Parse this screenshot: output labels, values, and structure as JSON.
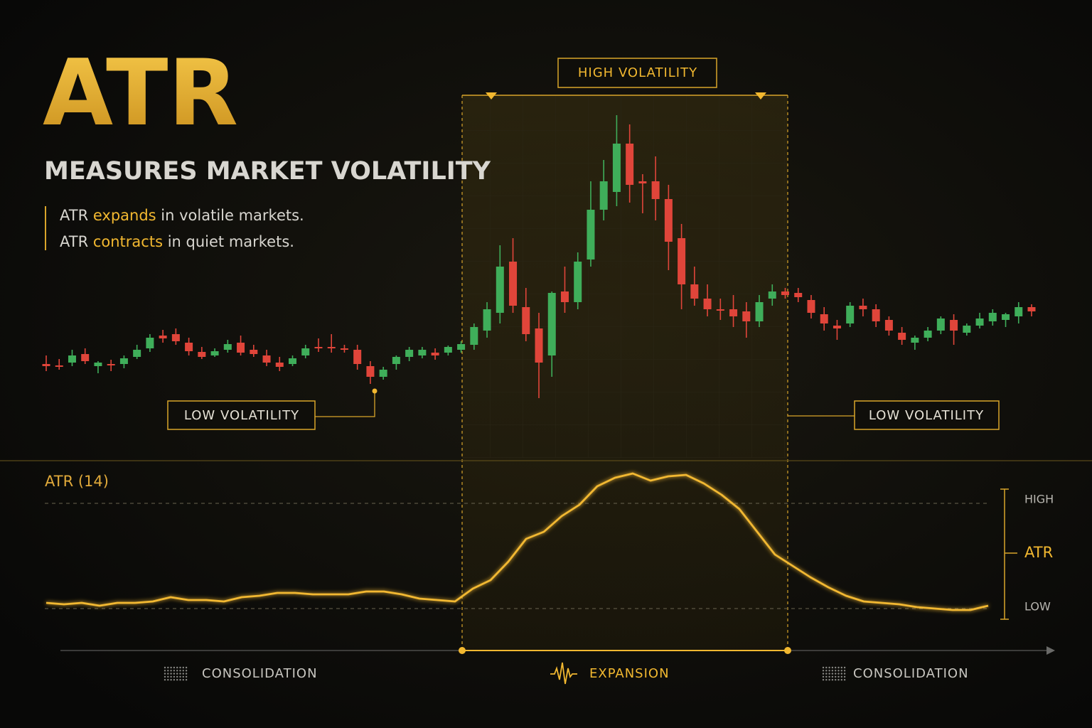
{
  "header": {
    "title": "ATR",
    "subtitle": "MEASURES MARKET VOLATILITY",
    "notes": [
      [
        "ATR ",
        "expands",
        " in volatile markets."
      ],
      [
        "ATR ",
        "contracts",
        " in quiet markets."
      ]
    ]
  },
  "annotations": {
    "high": "HIGH VOLATILITY",
    "low_left": "LOW VOLATILITY",
    "low_right": "LOW VOLATILITY"
  },
  "phases": [
    "CONSOLIDATION",
    "EXPANSION",
    "CONSOLIDATION"
  ],
  "chart_data": [
    {
      "type": "candlestick",
      "up_color": "#3fae5a",
      "down_color": "#e0453a",
      "ylim": [
        0,
        450
      ],
      "open": [
        88,
        86,
        90,
        102,
        85,
        88,
        88,
        98,
        110,
        128,
        130,
        118,
        105,
        100,
        108,
        118,
        108,
        100,
        90,
        88,
        100,
        112,
        112,
        110,
        108,
        85,
        70,
        88,
        98,
        100,
        104,
        104,
        108,
        115,
        135,
        160,
        232,
        168,
        138,
        100,
        190,
        175,
        235,
        305,
        330,
        398,
        345,
        345,
        320,
        265,
        200,
        180,
        165,
        165,
        162,
        148,
        180,
        190,
        188,
        178,
        158,
        142,
        145,
        170,
        165,
        150,
        132,
        118,
        125,
        135,
        150,
        132,
        142,
        148,
        150,
        155,
        168
      ],
      "high": [
        100,
        95,
        108,
        110,
        92,
        94,
        100,
        115,
        130,
        136,
        138,
        125,
        112,
        110,
        122,
        128,
        115,
        108,
        98,
        100,
        115,
        124,
        130,
        115,
        115,
        92,
        84,
        100,
        112,
        112,
        110,
        114,
        120,
        145,
        175,
        255,
        265,
        195,
        160,
        190,
        225,
        245,
        345,
        375,
        438,
        425,
        355,
        380,
        340,
        285,
        225,
        200,
        180,
        185,
        175,
        185,
        200,
        195,
        195,
        185,
        168,
        150,
        175,
        180,
        172,
        155,
        140,
        128,
        140,
        155,
        158,
        145,
        160,
        165,
        160,
        175,
        172
      ],
      "low": [
        78,
        80,
        85,
        88,
        75,
        78,
        82,
        95,
        105,
        118,
        115,
        100,
        95,
        98,
        104,
        100,
        98,
        85,
        78,
        85,
        96,
        105,
        104,
        104,
        80,
        60,
        66,
        80,
        92,
        96,
        94,
        100,
        104,
        108,
        125,
        145,
        160,
        120,
        40,
        70,
        160,
        165,
        225,
        290,
        310,
        315,
        300,
        290,
        220,
        165,
        170,
        155,
        150,
        140,
        125,
        140,
        170,
        180,
        175,
        152,
        135,
        122,
        140,
        155,
        140,
        128,
        115,
        108,
        120,
        130,
        115,
        128,
        138,
        142,
        140,
        145,
        155
      ],
      "close": [
        85,
        84,
        100,
        92,
        90,
        86,
        96,
        108,
        125,
        124,
        120,
        106,
        98,
        106,
        116,
        104,
        102,
        90,
        84,
        96,
        110,
        110,
        110,
        108,
        88,
        70,
        80,
        98,
        108,
        108,
        100,
        112,
        116,
        140,
        165,
        225,
        170,
        130,
        90,
        188,
        175,
        232,
        305,
        345,
        398,
        340,
        342,
        320,
        260,
        200,
        180,
        165,
        163,
        155,
        148,
        175,
        190,
        185,
        182,
        160,
        145,
        138,
        170,
        165,
        148,
        135,
        122,
        125,
        135,
        152,
        135,
        142,
        152,
        160,
        158,
        168,
        162
      ]
    },
    {
      "type": "line",
      "title": "ATR (14)",
      "color": "#f2b830",
      "ylim": [
        0,
        110
      ],
      "yticks": [
        {
          "value": 86,
          "label": "HIGH"
        },
        {
          "value": 51,
          "label": "ATR"
        },
        {
          "value": 12,
          "label": "LOW"
        }
      ],
      "values": [
        16,
        15,
        16,
        14,
        16,
        16,
        17,
        20,
        18,
        18,
        17,
        20,
        21,
        23,
        23,
        22,
        22,
        22,
        24,
        24,
        22,
        19,
        18,
        17,
        26,
        32,
        45,
        61,
        66,
        77,
        85,
        98,
        104,
        107,
        102,
        105,
        106,
        100,
        92,
        82,
        66,
        50,
        42,
        34,
        27,
        21,
        17,
        16,
        15,
        13,
        12,
        11,
        11,
        14
      ]
    }
  ]
}
